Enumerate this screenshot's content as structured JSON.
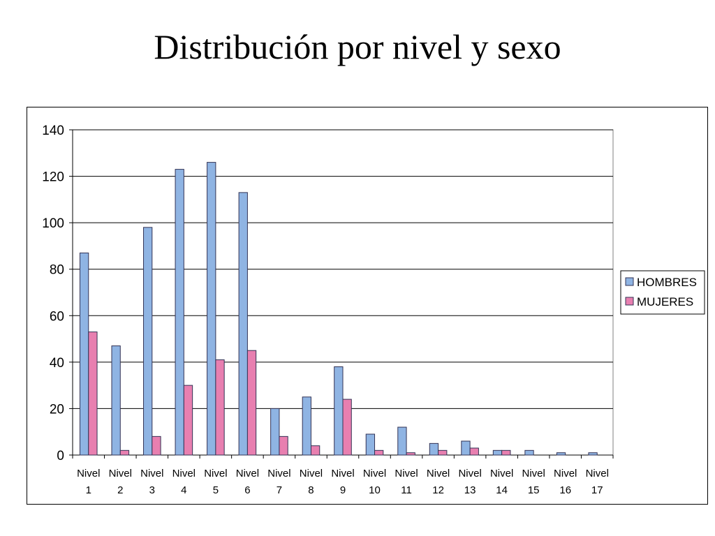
{
  "slide": {
    "title": "Distribución por nivel y sexo"
  },
  "chart_data": {
    "type": "bar",
    "title": "Distribución por nivel y sexo",
    "categories": [
      [
        "Nivel",
        "1"
      ],
      [
        "Nivel",
        "2"
      ],
      [
        "Nivel",
        "3"
      ],
      [
        "Nivel",
        "4"
      ],
      [
        "Nivel",
        "5"
      ],
      [
        "Nivel",
        "6"
      ],
      [
        "Nivel",
        "7"
      ],
      [
        "Nivel",
        "8"
      ],
      [
        "Nivel",
        "9"
      ],
      [
        "Nivel",
        "10"
      ],
      [
        "Nivel",
        "11"
      ],
      [
        "Nivel",
        "12"
      ],
      [
        "Nivel",
        "13"
      ],
      [
        "Nivel",
        "14"
      ],
      [
        "Nivel",
        "15"
      ],
      [
        "Nivel",
        "16"
      ],
      [
        "Nivel",
        "17"
      ]
    ],
    "series": [
      {
        "name": "HOMBRES",
        "color": "#8fb4e3",
        "values": [
          87,
          47,
          98,
          123,
          126,
          113,
          20,
          25,
          38,
          9,
          12,
          5,
          6,
          2,
          2,
          1,
          1
        ]
      },
      {
        "name": "MUJERES",
        "color": "#e87fb0",
        "values": [
          53,
          2,
          8,
          30,
          41,
          45,
          8,
          4,
          24,
          2,
          1,
          2,
          3,
          2,
          0,
          0,
          0
        ]
      }
    ],
    "ylim": [
      0,
      140
    ],
    "yticks": [
      0,
      20,
      40,
      60,
      80,
      100,
      120,
      140
    ],
    "xlabel": "",
    "ylabel": "",
    "grid": true,
    "legend_position": "right"
  }
}
